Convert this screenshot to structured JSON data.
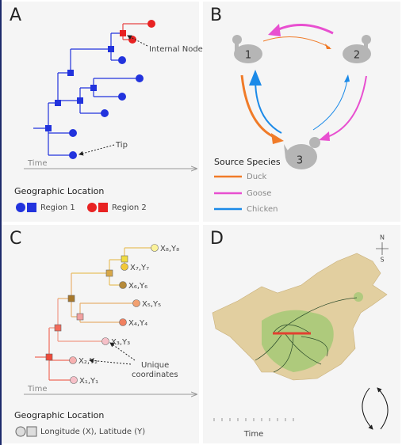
{
  "panels": {
    "a": {
      "label": "A",
      "internal_node": "Internal Node",
      "tip": "Tip",
      "axis": "Time",
      "legend_title": "Geographic Location",
      "legend": [
        "Region 1",
        "Region 2"
      ]
    },
    "b": {
      "label": "B",
      "nodes": [
        "1",
        "2",
        "3"
      ],
      "legend_title": "Source Species",
      "legend": [
        "Duck",
        "Goose",
        "Chicken"
      ]
    },
    "c": {
      "label": "C",
      "tips": [
        "X₈,Y₈",
        "X₇,Y₇",
        "X₆,Y₆",
        "X₅,Y₅",
        "X₄,Y₄",
        "X₃,Y₃",
        "X₂,Y₂",
        "X₁,Y₁"
      ],
      "annotation": [
        "Unique",
        "coordinates"
      ],
      "axis": "Time",
      "legend_title": "Geographic Location",
      "legend": "Longitude (X), Latitude (Y)"
    },
    "d": {
      "label": "D",
      "compass": [
        "N",
        "S"
      ],
      "colorbar": "Time"
    }
  }
}
